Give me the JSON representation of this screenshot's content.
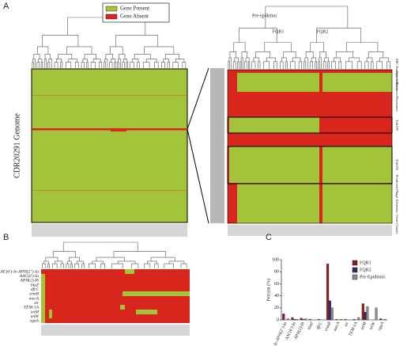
{
  "panel_a": {
    "label": "A",
    "legend": [
      "Gene Present",
      "Gene Absent"
    ],
    "genome_label": "CDR20291 Genome",
    "clade_labels": [
      "Pre-epidemic",
      "FQR1",
      "FQR2"
    ],
    "feature_labels": [
      "ABC Transporters",
      "Protein Toxin",
      "Tolerance/Resistance",
      "Tn6105",
      "Tn6192",
      "Predicted Phage Elements / Gene Cluster"
    ]
  },
  "panel_b": {
    "label": "B",
    "genes": [
      "AAC(6')-Ie-APH(2'')-Ia",
      "AAC(6')-Ia",
      "APH(2)-Ib",
      "blaZ",
      "dfrC",
      "ermB",
      "mecA",
      "str",
      "TEM-1A",
      "tetM",
      "tetW",
      "vgaA"
    ]
  },
  "chart_data": {
    "type": "bar",
    "label": "C",
    "y_label": "Percent (%)",
    "categories": [
      "AAC(6')-Ie-APH(2'')-Ia",
      "AAC(6')-Ia",
      "APH(2)-Ib",
      "blaZ",
      "dfrC",
      "ermB",
      "mecA",
      "str",
      "TEM-1A",
      "tetM",
      "tetW",
      "vgaA"
    ],
    "series": [
      {
        "name": "FQR1",
        "color": "#8e1b1b",
        "values": [
          10,
          4,
          3,
          1,
          1,
          93,
          1,
          1,
          1,
          27,
          0,
          2
        ]
      },
      {
        "name": "FQR2",
        "color": "#2b2c6e",
        "values": [
          0,
          1,
          1,
          0,
          0,
          32,
          0,
          0,
          0,
          13,
          0,
          0
        ]
      },
      {
        "name": "Pre-Epidemic",
        "color": "#8c8c8c",
        "values": [
          2,
          1,
          2,
          0,
          0,
          20,
          1,
          0,
          4,
          22,
          20,
          1
        ]
      }
    ],
    "ylim": [
      0,
      100
    ],
    "yticks": [
      0,
      20,
      40,
      60,
      80,
      100
    ],
    "legend": "top-right"
  }
}
